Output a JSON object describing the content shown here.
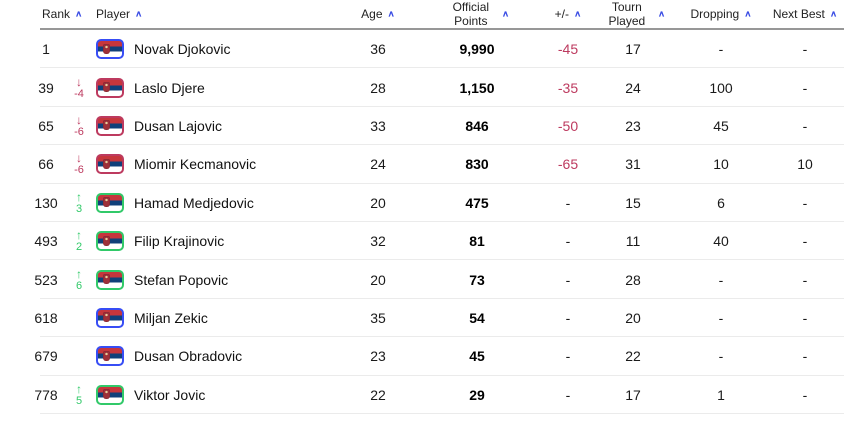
{
  "table": {
    "columns": {
      "rank": {
        "label": "Rank",
        "sortable": true
      },
      "player": {
        "label": "Player",
        "sortable": true
      },
      "age": {
        "label": "Age",
        "sortable": true
      },
      "points": {
        "label": "Official Points",
        "sortable": true
      },
      "plusminus": {
        "label": "+/-",
        "sortable": true
      },
      "tourn": {
        "label": "Tourn Played",
        "sortable": true
      },
      "dropping": {
        "label": "Dropping",
        "sortable": true
      },
      "nextbest": {
        "label": "Next Best",
        "sortable": true
      }
    },
    "rows": [
      {
        "rank": "1",
        "movement": "",
        "movement_dir": "none",
        "player": "Novak Djokovic",
        "flag": "serbia",
        "age": "36",
        "points": "9,990",
        "plusminus": "-45",
        "tourn": "17",
        "dropping": "-",
        "nextbest": "-"
      },
      {
        "rank": "39",
        "movement": "-4",
        "movement_dir": "down",
        "player": "Laslo Djere",
        "flag": "serbia",
        "age": "28",
        "points": "1,150",
        "plusminus": "-35",
        "tourn": "24",
        "dropping": "100",
        "nextbest": "-"
      },
      {
        "rank": "65",
        "movement": "-6",
        "movement_dir": "down",
        "player": "Dusan Lajovic",
        "flag": "serbia",
        "age": "33",
        "points": "846",
        "plusminus": "-50",
        "tourn": "23",
        "dropping": "45",
        "nextbest": "-"
      },
      {
        "rank": "66",
        "movement": "-6",
        "movement_dir": "down",
        "player": "Miomir Kecmanovic",
        "flag": "serbia",
        "age": "24",
        "points": "830",
        "plusminus": "-65",
        "tourn": "31",
        "dropping": "10",
        "nextbest": "10"
      },
      {
        "rank": "130",
        "movement": "3",
        "movement_dir": "up",
        "player": "Hamad Medjedovic",
        "flag": "serbia",
        "age": "20",
        "points": "475",
        "plusminus": "-",
        "tourn": "15",
        "dropping": "6",
        "nextbest": "-"
      },
      {
        "rank": "493",
        "movement": "2",
        "movement_dir": "up",
        "player": "Filip Krajinovic",
        "flag": "serbia",
        "age": "32",
        "points": "81",
        "plusminus": "-",
        "tourn": "11",
        "dropping": "40",
        "nextbest": "-"
      },
      {
        "rank": "523",
        "movement": "6",
        "movement_dir": "up",
        "player": "Stefan Popovic",
        "flag": "serbia",
        "age": "20",
        "points": "73",
        "plusminus": "-",
        "tourn": "28",
        "dropping": "-",
        "nextbest": "-"
      },
      {
        "rank": "618",
        "movement": "",
        "movement_dir": "none",
        "player": "Miljan Zekic",
        "flag": "serbia",
        "age": "35",
        "points": "54",
        "plusminus": "-",
        "tourn": "20",
        "dropping": "-",
        "nextbest": "-"
      },
      {
        "rank": "679",
        "movement": "",
        "movement_dir": "none",
        "player": "Dusan Obradovic",
        "flag": "serbia",
        "age": "23",
        "points": "45",
        "plusminus": "-",
        "tourn": "22",
        "dropping": "-",
        "nextbest": "-"
      },
      {
        "rank": "778",
        "movement": "5",
        "movement_dir": "up",
        "player": "Viktor Jovic",
        "flag": "serbia",
        "age": "22",
        "points": "29",
        "plusminus": "-",
        "tourn": "17",
        "dropping": "1",
        "nextbest": "-"
      }
    ]
  },
  "glyphs": {
    "sort_caret": "∧",
    "up_arrow": "↑",
    "down_arrow": "↓"
  },
  "colors": {
    "sort_caret_blue": "#3a4de4",
    "movement_up_green": "#31c969",
    "movement_down_red": "#bd3a5f",
    "negative_value_red": "#bd3a5f",
    "flag_border_default": "#374df5",
    "flag_red": "#c6363c",
    "flag_blue": "#10407a",
    "flag_white": "#ffffff",
    "header_border": "#979797",
    "row_separator": "#ebebeb",
    "text": "#1a1a1a"
  }
}
